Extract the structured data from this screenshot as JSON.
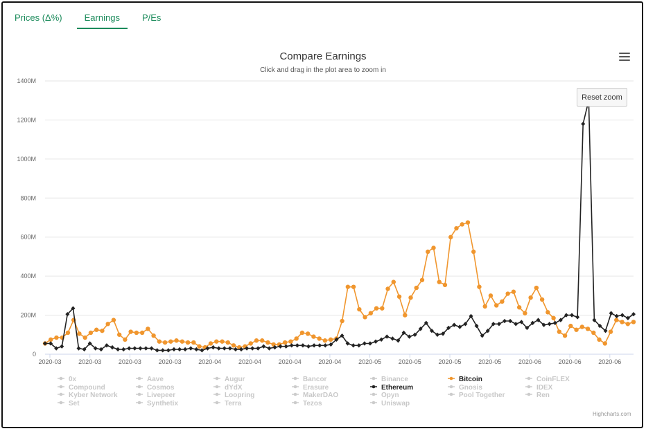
{
  "tabs": [
    {
      "label": "Prices (Δ%)"
    },
    {
      "label": "Earnings"
    },
    {
      "label": "P/Es"
    }
  ],
  "chart_data": {
    "type": "line",
    "title": "Compare Earnings",
    "subtitle": "Click and drag in the plot area to zoom in",
    "ylim": [
      0,
      1400
    ],
    "ytick_labels": [
      "0",
      "200M",
      "400M",
      "600M",
      "800M",
      "1000M",
      "1200M",
      "1400M"
    ],
    "xtick_labels": [
      "2020-03",
      "2020-03",
      "2020-03",
      "2020-03",
      "2020-04",
      "2020-04",
      "2020-04",
      "2020-04",
      "2020-05",
      "2020-05",
      "2020-05",
      "2020-05",
      "2020-06",
      "2020-06",
      "2020-06"
    ],
    "grid": true,
    "series": [
      {
        "name": "Bitcoin",
        "color": "#f0962e",
        "marker": "circle",
        "values": [
          55,
          75,
          85,
          85,
          110,
          175,
          105,
          85,
          110,
          125,
          120,
          155,
          175,
          100,
          75,
          115,
          110,
          110,
          130,
          95,
          65,
          60,
          65,
          70,
          65,
          60,
          60,
          40,
          35,
          55,
          65,
          65,
          60,
          45,
          35,
          40,
          55,
          70,
          70,
          60,
          50,
          50,
          60,
          65,
          80,
          110,
          105,
          90,
          80,
          70,
          75,
          80,
          170,
          345,
          345,
          230,
          190,
          210,
          235,
          235,
          335,
          370,
          295,
          200,
          290,
          340,
          380,
          525,
          545,
          370,
          355,
          600,
          645,
          665,
          675,
          525,
          345,
          245,
          300,
          250,
          270,
          310,
          320,
          240,
          210,
          290,
          340,
          280,
          215,
          185,
          115,
          95,
          145,
          125,
          140,
          130,
          110,
          75,
          55,
          115,
          175,
          165,
          155,
          165
        ]
      },
      {
        "name": "Ethereum",
        "color": "#222222",
        "marker": "diamond",
        "values": [
          55,
          55,
          30,
          40,
          205,
          235,
          30,
          25,
          55,
          30,
          25,
          45,
          35,
          25,
          25,
          30,
          30,
          30,
          30,
          30,
          20,
          20,
          20,
          25,
          25,
          25,
          30,
          25,
          20,
          30,
          35,
          30,
          30,
          30,
          25,
          25,
          30,
          30,
          30,
          40,
          30,
          35,
          40,
          40,
          45,
          45,
          45,
          40,
          45,
          45,
          45,
          50,
          75,
          95,
          55,
          45,
          45,
          55,
          55,
          65,
          75,
          90,
          80,
          70,
          110,
          90,
          100,
          130,
          160,
          120,
          100,
          105,
          135,
          150,
          140,
          155,
          195,
          145,
          95,
          120,
          155,
          155,
          170,
          170,
          155,
          165,
          135,
          160,
          175,
          150,
          155,
          160,
          175,
          200,
          200,
          190,
          1180,
          1300,
          175,
          145,
          120,
          210,
          195,
          200,
          185,
          205
        ]
      }
    ],
    "legend": [
      [
        "0x",
        "Compound",
        "Kyber Network",
        "Set"
      ],
      [
        "Aave",
        "Cosmos",
        "Livepeer",
        "Synthetix"
      ],
      [
        "Augur",
        "dYdX",
        "Loopring",
        "Terra"
      ],
      [
        "Bancor",
        "Erasure",
        "MakerDAO",
        "Tezos"
      ],
      [
        "Binance",
        "Ethereum",
        "Opyn",
        "Uniswap"
      ],
      [
        "Bitcoin",
        "Gnosis",
        "Pool Together"
      ],
      [
        "CoinFLEX",
        "IDEX",
        "Ren"
      ]
    ],
    "legend_active": [
      "Bitcoin",
      "Ethereum"
    ]
  },
  "reset_zoom_label": "Reset zoom",
  "credits": "Highcharts.com",
  "icons": {
    "menu": "hamburger-menu-icon"
  }
}
